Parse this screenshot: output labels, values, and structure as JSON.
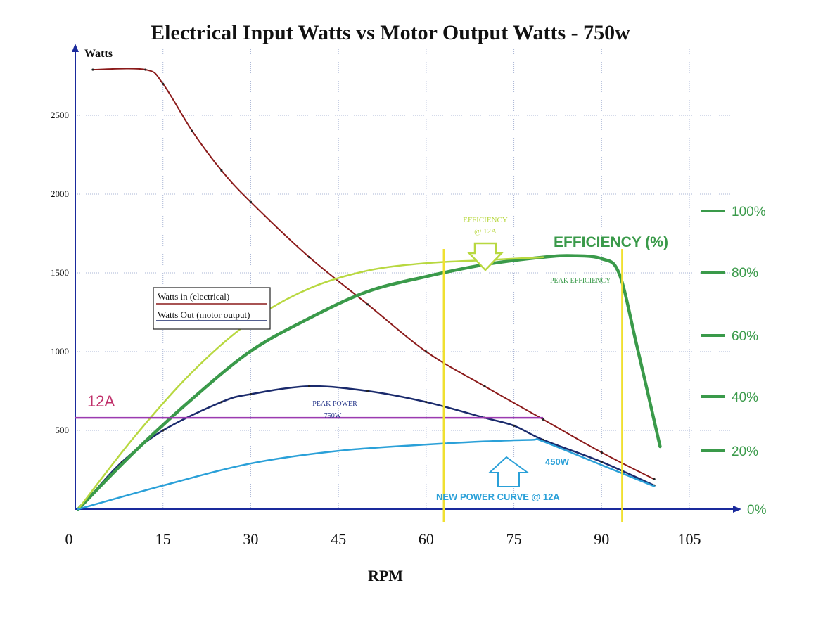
{
  "chart_data": {
    "type": "line",
    "title": "Electrical Input Watts vs Motor Output Watts - 750w",
    "xlabel": "RPM",
    "ylabel": "Watts",
    "xlim": [
      0,
      105
    ],
    "ylim": [
      0,
      2800
    ],
    "x_ticks": [
      0,
      15,
      30,
      45,
      60,
      75,
      90,
      105
    ],
    "y_ticks": [
      500,
      1000,
      1500,
      2000,
      2500
    ],
    "y2_ticks": [
      "100%",
      "80%",
      "60%",
      "40%",
      "20%",
      "0%"
    ],
    "y2_label": "EFFICIENCY (%)",
    "grid": true,
    "legend": {
      "position": "left",
      "entries": [
        "Watts in (electrical)",
        "Watts Out (motor output)"
      ]
    },
    "series": [
      {
        "name": "Watts in (electrical)",
        "color": "#8b1a1a",
        "x": [
          3,
          12,
          15,
          20,
          25,
          30,
          40,
          50,
          60,
          70,
          80,
          90,
          99
        ],
        "y": [
          2790,
          2790,
          2700,
          2400,
          2150,
          1950,
          1600,
          1300,
          1000,
          780,
          570,
          360,
          190
        ]
      },
      {
        "name": "Watts Out (motor output)",
        "color": "#1a2a6c",
        "x": [
          3,
          8,
          15,
          25,
          30,
          40,
          50,
          60,
          70,
          75,
          80,
          90,
          99
        ],
        "y": [
          100,
          300,
          500,
          680,
          730,
          780,
          750,
          680,
          580,
          530,
          440,
          300,
          150
        ]
      },
      {
        "name": "EFFICIENCY (%)",
        "color": "#3a9a4a",
        "x": [
          0.5,
          10,
          20,
          30,
          40,
          50,
          60,
          70,
          80,
          85,
          90,
          93,
          96,
          100
        ],
        "y": [
          0,
          19,
          37,
          53,
          64,
          73,
          78,
          82,
          84.5,
          85,
          84,
          79,
          55,
          21
        ]
      },
      {
        "name": "EFFICIENCY @ 12A",
        "color": "#b8d840",
        "x": [
          0.5,
          10,
          20,
          30,
          40,
          50,
          60,
          70,
          80
        ],
        "y": [
          0,
          24,
          46,
          63,
          74,
          80,
          82.5,
          83.5,
          84.5
        ]
      },
      {
        "name": "NEW POWER CURVE @ 12A",
        "color": "#2aa0d8",
        "x": [
          0.5,
          15,
          30,
          45,
          60,
          70,
          78,
          80,
          90,
          99
        ],
        "y": [
          0,
          150,
          290,
          370,
          410,
          430,
          440,
          430,
          280,
          145
        ]
      }
    ],
    "reference_lines": [
      {
        "label": "12A",
        "axis": "y",
        "value": 580,
        "color": "#9b3ab0",
        "x_end": 80
      },
      {
        "axis": "x",
        "value": 63,
        "color": "#f0e030"
      },
      {
        "axis": "x",
        "value": 93.5,
        "color": "#f0e030"
      }
    ],
    "annotations": [
      {
        "text": "EFFICIENCY",
        "color": "#b8d840"
      },
      {
        "text": "@ 12A",
        "color": "#b8d840"
      },
      {
        "text": "EFFICIENCY (%)",
        "color": "#3a9a4a"
      },
      {
        "text": "PEAK EFFICIENCY",
        "color": "#3a9a4a"
      },
      {
        "text": "PEAK POWER",
        "color": "#2a3a8c"
      },
      {
        "text": "750W",
        "color": "#2a3a8c"
      },
      {
        "text": "450W",
        "color": "#2aa0d8"
      },
      {
        "text": "NEW POWER CURVE  @ 12A",
        "color": "#2aa0d8"
      },
      {
        "text": "12A",
        "color": "#c0306a"
      }
    ]
  }
}
